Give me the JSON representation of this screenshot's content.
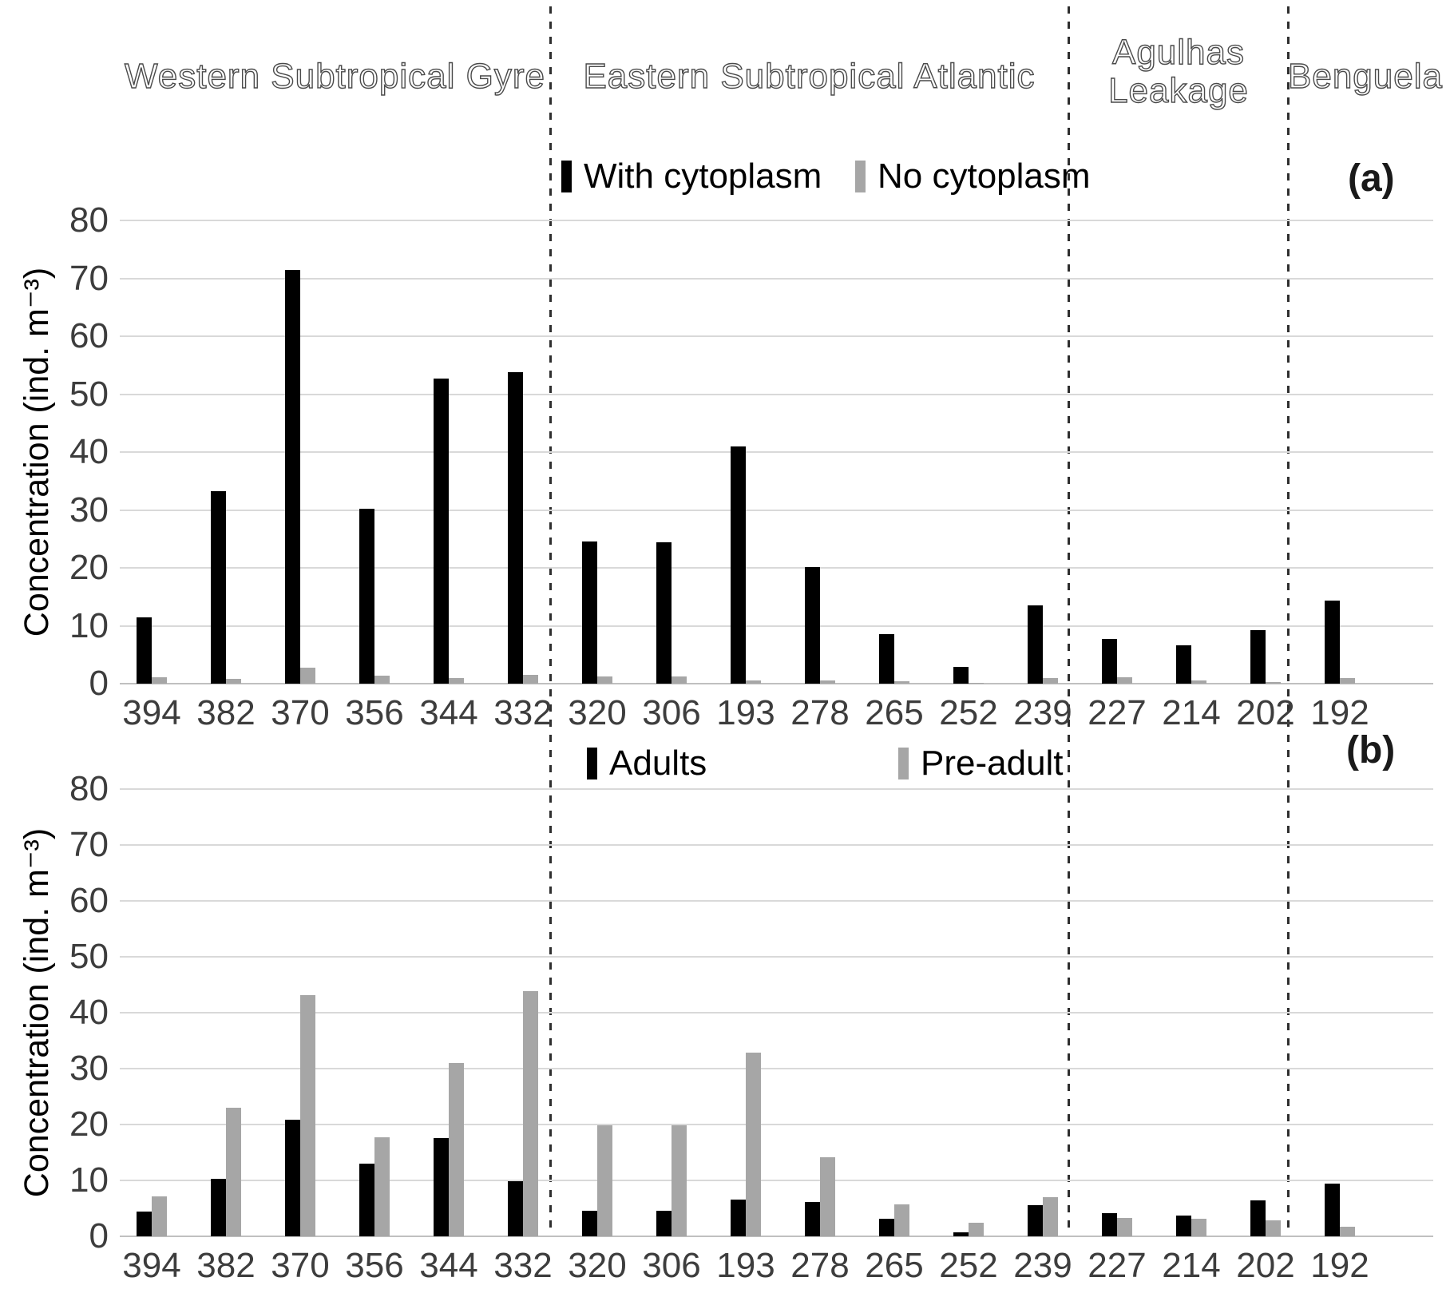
{
  "figure": {
    "panel_a_label": "(a)",
    "panel_b_label": "(b)",
    "y_axis_title": "Concentration (ind. m⁻³)",
    "regions": [
      {
        "label": "Western Subtropical Gyre"
      },
      {
        "label": "Eastern Subtropical Atlantic"
      },
      {
        "label": "Agulhas Leakage"
      },
      {
        "label": "Benguela"
      }
    ],
    "separators_after_stations": [
      "332",
      "239",
      "202"
    ]
  },
  "chart_data": [
    {
      "type": "bar",
      "panel": "a",
      "categories": [
        "394",
        "382",
        "370",
        "356",
        "344",
        "332",
        "320",
        "306",
        "193",
        "278",
        "265",
        "252",
        "239",
        "227",
        "214",
        "202",
        "192"
      ],
      "series": [
        {
          "name": "With cytoplasm",
          "color": "#000000",
          "values": [
            11.5,
            33.3,
            71.5,
            30.2,
            52.7,
            53.8,
            24.5,
            24.4,
            41.0,
            20.2,
            8.6,
            2.9,
            13.5,
            7.7,
            6.6,
            9.3,
            14.3
          ]
        },
        {
          "name": "No cytoplasm",
          "color": "#a6a6a6",
          "values": [
            1.1,
            0.8,
            2.8,
            1.4,
            0.9,
            1.5,
            1.3,
            1.3,
            0.5,
            0.6,
            0.4,
            0.2,
            0.9,
            1.1,
            0.6,
            0.3,
            1.0
          ]
        }
      ],
      "ylabel": "Concentration (ind. m⁻³)",
      "ylim": [
        0,
        80
      ],
      "yticks": [
        0,
        10,
        20,
        30,
        40,
        50,
        60,
        70,
        80
      ],
      "grid": true,
      "legend_position": "top-center"
    },
    {
      "type": "bar",
      "panel": "b",
      "categories": [
        "394",
        "382",
        "370",
        "356",
        "344",
        "332",
        "320",
        "306",
        "193",
        "278",
        "265",
        "252",
        "239",
        "227",
        "214",
        "202",
        "192"
      ],
      "series": [
        {
          "name": "Adults",
          "color": "#000000",
          "values": [
            4.4,
            10.3,
            20.8,
            13.0,
            17.6,
            9.8,
            4.6,
            4.6,
            6.6,
            6.2,
            3.1,
            0.7,
            5.6,
            4.2,
            3.7,
            6.5,
            9.4
          ]
        },
        {
          "name": "Pre-adult",
          "color": "#a6a6a6",
          "values": [
            7.2,
            23.0,
            43.2,
            17.7,
            31.0,
            43.9,
            19.9,
            19.9,
            32.9,
            14.2,
            5.7,
            2.4,
            7.0,
            3.3,
            3.1,
            2.8,
            1.7
          ]
        }
      ],
      "ylabel": "Concentration (ind. m⁻³)",
      "ylim": [
        0,
        80
      ],
      "yticks": [
        0,
        10,
        20,
        30,
        40,
        50,
        60,
        70,
        80
      ],
      "grid": true,
      "legend_position": "top-center"
    }
  ]
}
